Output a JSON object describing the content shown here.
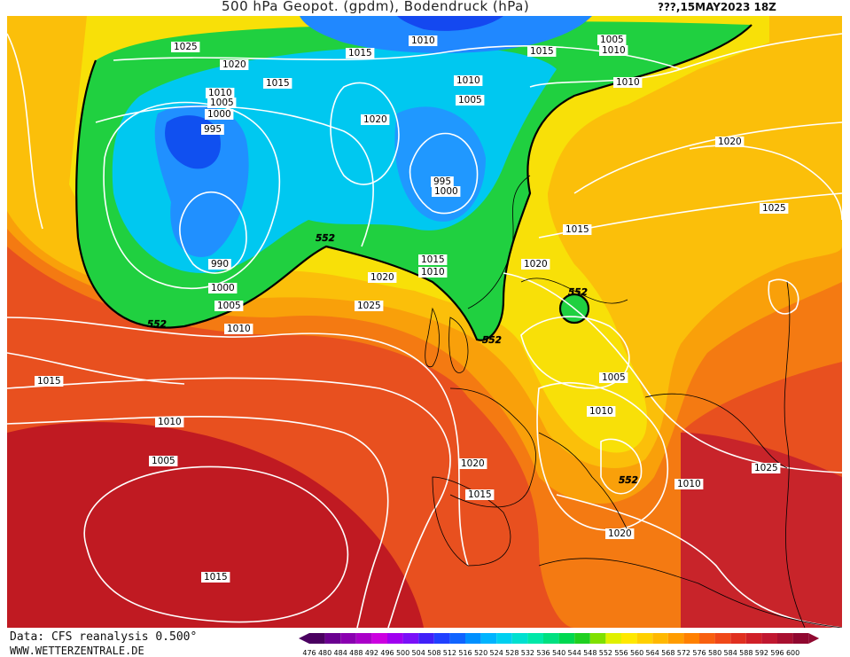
{
  "header": {
    "title": "500 hPa Geopot. (gpdm), Bodendruck (hPa)",
    "date": "???,15MAY2023 18Z"
  },
  "footer": {
    "data_source": "Data: CFS reanalysis 0.500°",
    "url": "WWW.WETTERZENTRALE.DE"
  },
  "legend": {
    "values": [
      "476",
      "480",
      "484",
      "488",
      "492",
      "496",
      "500",
      "504",
      "508",
      "512",
      "516",
      "520",
      "524",
      "528",
      "532",
      "536",
      "540",
      "544",
      "548",
      "552",
      "556",
      "560",
      "564",
      "568",
      "572",
      "576",
      "580",
      "584",
      "588",
      "592",
      "596",
      "600"
    ],
    "colors": [
      "#4a0060",
      "#6a0090",
      "#8a00b0",
      "#aa00c8",
      "#cc00e0",
      "#a000f0",
      "#7a10f8",
      "#4020f8",
      "#2040ff",
      "#1064ff",
      "#0090ff",
      "#00b4ff",
      "#00d0f0",
      "#00e0d0",
      "#00e8a8",
      "#00e080",
      "#00d850",
      "#20d020",
      "#80e000",
      "#e0f000",
      "#ffe800",
      "#ffd000",
      "#ffb800",
      "#ff9c00",
      "#ff8000",
      "#f86010",
      "#f04818",
      "#e03020",
      "#d02028",
      "#c01830",
      "#a81030",
      "#900830"
    ]
  },
  "map": {
    "colors": {
      "background": "#e8501f",
      "ridge_dark": "#c01a22",
      "orange": "#f47a12",
      "light_orange": "#f9a00a",
      "yellow_orange": "#fbbf0a",
      "yellow": "#f8e008",
      "green": "#20d040",
      "cyan": "#00c8f0",
      "blue": "#2090ff",
      "deep_blue": "#1050f0"
    },
    "isobar_labels": [
      "1025",
      "1020",
      "1010",
      "1005",
      "1000",
      "995",
      "1015",
      "1020",
      "1010",
      "1005",
      "1015",
      "1010",
      "1005",
      "995",
      "1000",
      "1010",
      "1015",
      "990",
      "1000",
      "1005",
      "1010",
      "1020",
      "1025",
      "1015",
      "1020",
      "1025",
      "1015",
      "1010",
      "1020",
      "1015",
      "1010",
      "1005",
      "1005",
      "1010",
      "1010",
      "1025",
      "1020",
      "1015",
      "1020",
      "1015",
      "1010"
    ],
    "height_labels": [
      "552",
      "552",
      "552",
      "552",
      "552"
    ]
  }
}
